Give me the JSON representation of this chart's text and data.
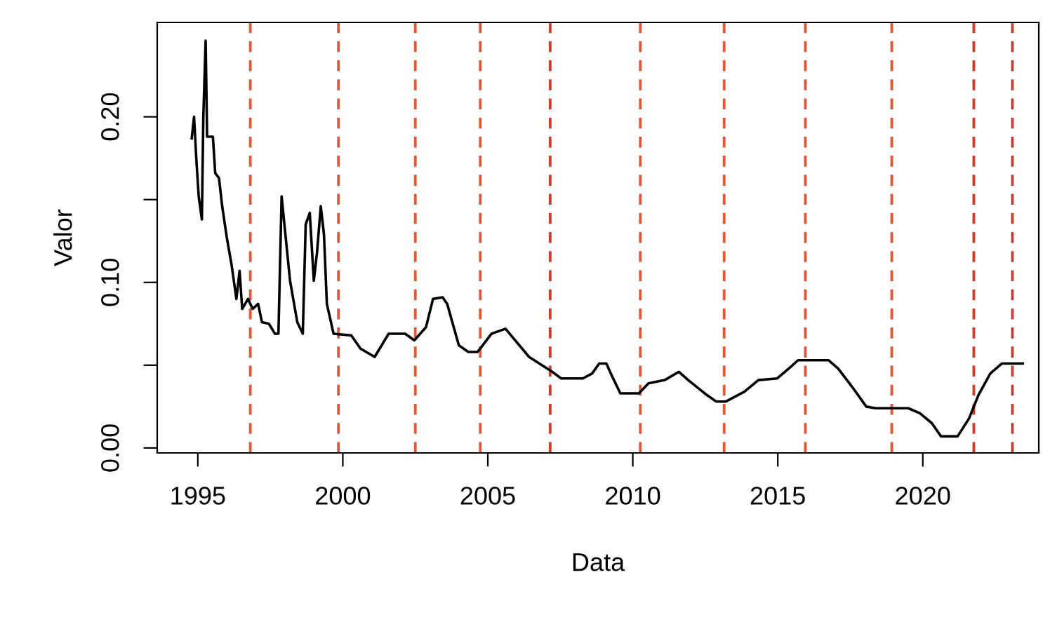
{
  "chart_data": {
    "type": "line",
    "xlabel": "Data",
    "ylabel": "Valor",
    "xlim": [
      1993.6,
      2024.0
    ],
    "xticks": [
      1995,
      2000,
      2005,
      2010,
      2015,
      2020
    ],
    "ylim": [
      -0.003,
      0.257
    ],
    "yticks": [
      {
        "value": 0,
        "label": "0.00"
      },
      {
        "value": 0.05,
        "label": null
      },
      {
        "value": 0.1,
        "label": "0.10"
      },
      {
        "value": 0.15,
        "label": null
      },
      {
        "value": 0.2,
        "label": "0.20"
      }
    ],
    "x": [
      1994.79,
      1994.87,
      1994.95,
      1995.03,
      1995.14,
      1995.19,
      1995.27,
      1995.32,
      1995.52,
      1995.6,
      1995.73,
      1995.84,
      1996.0,
      1996.17,
      1996.33,
      1996.44,
      1996.53,
      1996.73,
      1996.89,
      1997.08,
      1997.21,
      1997.45,
      1997.66,
      1997.78,
      1997.89,
      1998.02,
      1998.18,
      1998.43,
      1998.62,
      1998.72,
      1998.86,
      1999.0,
      1999.11,
      1999.24,
      1999.35,
      1999.45,
      1999.68,
      2000.29,
      2000.61,
      2001.1,
      2001.58,
      2002.15,
      2002.47,
      2002.87,
      2003.11,
      2003.44,
      2003.6,
      2004.0,
      2004.33,
      2004.65,
      2005.13,
      2005.61,
      2006.42,
      2007.22,
      2007.53,
      2008.28,
      2008.6,
      2008.84,
      2009.09,
      2009.24,
      2009.57,
      2010.21,
      2010.54,
      2011.1,
      2011.59,
      2011.91,
      2012.55,
      2012.88,
      2013.2,
      2013.85,
      2014.33,
      2014.98,
      2015.38,
      2015.7,
      2016.75,
      2017.08,
      2017.56,
      2018.05,
      2018.37,
      2019.5,
      2019.9,
      2020.31,
      2020.63,
      2021.2,
      2021.6,
      2021.92,
      2022.33,
      2022.73,
      2023.45
    ],
    "series": [
      {
        "color": "#000000",
        "values": [
          0.187,
          0.2,
          0.174,
          0.152,
          0.138,
          0.2,
          0.246,
          0.188,
          0.188,
          0.166,
          0.163,
          0.146,
          0.127,
          0.11,
          0.09,
          0.107,
          0.084,
          0.09,
          0.084,
          0.087,
          0.076,
          0.075,
          0.069,
          0.069,
          0.152,
          0.129,
          0.101,
          0.076,
          0.069,
          0.135,
          0.142,
          0.101,
          0.118,
          0.146,
          0.129,
          0.087,
          0.069,
          0.068,
          0.06,
          0.055,
          0.069,
          0.069,
          0.065,
          0.073,
          0.09,
          0.091,
          0.087,
          0.062,
          0.058,
          0.058,
          0.069,
          0.072,
          0.055,
          0.046,
          0.042,
          0.042,
          0.045,
          0.051,
          0.051,
          0.045,
          0.033,
          0.033,
          0.039,
          0.041,
          0.046,
          0.041,
          0.032,
          0.028,
          0.028,
          0.034,
          0.041,
          0.042,
          0.048,
          0.053,
          0.053,
          0.048,
          0.037,
          0.025,
          0.024,
          0.024,
          0.021,
          0.015,
          0.007,
          0.007,
          0.018,
          0.032,
          0.045,
          0.051,
          0.051
        ]
      }
    ],
    "ref_lines": [
      {
        "axis": "x",
        "value": 1996.81,
        "color": "#e05a3a",
        "line_style": "dashed"
      },
      {
        "axis": "x",
        "value": 1999.85,
        "color": "#e05a3a",
        "line_style": "dashed"
      },
      {
        "axis": "x",
        "value": 2002.5,
        "color": "#e05a3a",
        "line_style": "dashed"
      },
      {
        "axis": "x",
        "value": 2004.74,
        "color": "#e05a3a",
        "line_style": "dashed"
      },
      {
        "axis": "x",
        "value": 2007.15,
        "color": "#c8402e",
        "line_style": "dashed"
      },
      {
        "axis": "x",
        "value": 2010.26,
        "color": "#e05a3a",
        "line_style": "dashed"
      },
      {
        "axis": "x",
        "value": 2013.15,
        "color": "#e05a3a",
        "line_style": "dashed"
      },
      {
        "axis": "x",
        "value": 2015.95,
        "color": "#e05a3a",
        "line_style": "dashed"
      },
      {
        "axis": "x",
        "value": 2018.93,
        "color": "#e05a3a",
        "line_style": "dashed"
      },
      {
        "axis": "x",
        "value": 2021.76,
        "color": "#c8402e",
        "line_style": "dashed"
      },
      {
        "axis": "x",
        "value": 2023.09,
        "color": "#c8402e",
        "line_style": "dashed"
      }
    ],
    "grid": false,
    "legend": false
  }
}
